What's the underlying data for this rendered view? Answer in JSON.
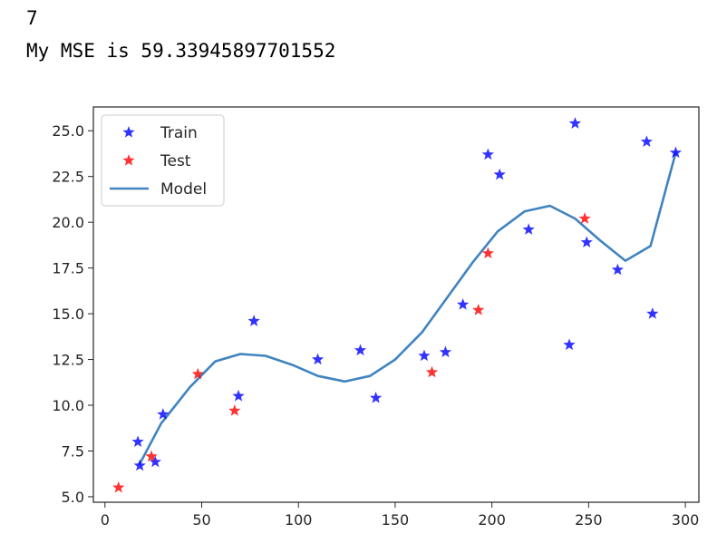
{
  "output": {
    "line1": "7",
    "line2": "My MSE is 59.33945897701552"
  },
  "colors": {
    "train": "#0000ff",
    "test": "#ff0000",
    "model": "#1f6fb4",
    "axes": "#262626"
  },
  "chart_data": {
    "type": "scatter",
    "title": "",
    "xlabel": "",
    "ylabel": "",
    "xlim": [
      -6,
      307
    ],
    "ylim": [
      4.7,
      26.3
    ],
    "xticks": [
      0,
      50,
      100,
      150,
      200,
      250,
      300
    ],
    "yticks": [
      5.0,
      7.5,
      10.0,
      12.5,
      15.0,
      17.5,
      20.0,
      22.5,
      25.0
    ],
    "grid": false,
    "legend": "upper-left",
    "series": [
      {
        "name": "Train",
        "kind": "scatter",
        "marker": "star",
        "color": "#0000ff",
        "x": [
          17,
          18,
          26,
          30,
          69,
          77,
          110,
          132,
          140,
          165,
          176,
          185,
          198,
          204,
          219,
          240,
          243,
          249,
          265,
          280,
          283,
          295
        ],
        "y": [
          8.0,
          6.7,
          6.9,
          9.5,
          10.5,
          14.6,
          12.5,
          13.0,
          10.4,
          12.7,
          12.9,
          15.5,
          23.7,
          22.6,
          19.6,
          13.3,
          25.4,
          18.9,
          17.4,
          24.4,
          15.0,
          23.8
        ]
      },
      {
        "name": "Test",
        "kind": "scatter",
        "marker": "star",
        "color": "#ff0000",
        "x": [
          7,
          24,
          48,
          67,
          169,
          193,
          198,
          248
        ],
        "y": [
          5.5,
          7.2,
          11.7,
          9.7,
          11.8,
          15.2,
          18.3,
          20.2
        ]
      },
      {
        "name": "Model",
        "kind": "line",
        "color": "#1f6fb4",
        "x": [
          18,
          29,
          44,
          57,
          70,
          83,
          97,
          110,
          124,
          137,
          150,
          164,
          177,
          190,
          203,
          217,
          230,
          243,
          256,
          269,
          282,
          295
        ],
        "y": [
          6.8,
          9.0,
          11.0,
          12.4,
          12.8,
          12.7,
          12.2,
          11.6,
          11.3,
          11.6,
          12.5,
          14.0,
          15.9,
          17.8,
          19.5,
          20.6,
          20.9,
          20.2,
          19.0,
          17.9,
          18.7,
          23.8
        ]
      }
    ]
  }
}
